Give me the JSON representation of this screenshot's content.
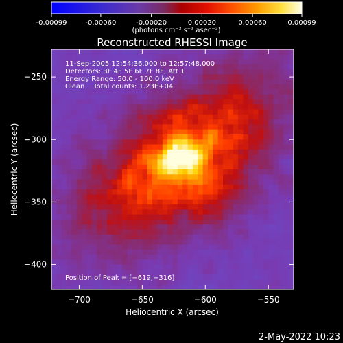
{
  "colorbar": {
    "tick_labels": [
      "-0.00099",
      "-0.00060",
      "-0.00020",
      "0.00020",
      "0.00060",
      "0.00099"
    ],
    "tick_values": [
      -0.00099,
      -0.0006,
      -0.0002,
      0.0002,
      0.0006,
      0.00099
    ],
    "range": [
      -0.00099,
      0.00099
    ],
    "unit_label": "(photons cm⁻² s⁻¹ asec⁻²)"
  },
  "chart_data": {
    "type": "heatmap",
    "title": "Reconstructed RHESSI Image",
    "xlabel": "Heliocentric X (arcsec)",
    "ylabel": "Heliocentric Y (arcsec)",
    "xlim": [
      -722,
      -530
    ],
    "ylim": [
      -420,
      -228
    ],
    "x_ticks": [
      -700,
      -650,
      -600,
      -550
    ],
    "y_ticks": [
      -250,
      -300,
      -350,
      -400
    ],
    "x_tick_labels": [
      "−700",
      "−650",
      "−600",
      "−550"
    ],
    "y_tick_labels": [
      "−250",
      "−300",
      "−350",
      "−400"
    ],
    "peak": [
      -619,
      -316
    ],
    "annotations": [
      "11-Sep-2005 12:54:36.000 to 12:57:48.000",
      "Detectors: 3F 4F 5F 6F 7F 8F, Att 1",
      "Energy Range: 50.0 - 100.0 keV",
      "Clean    Total counts: 1.23E+04",
      "Position of Peak = [−619,−316]"
    ],
    "colormap": [
      "#1a1aff",
      "#6a4ac8",
      "#7a3ab0",
      "#8a2a6a",
      "#c01010",
      "#ff3a00",
      "#ff8c00",
      "#ffd000",
      "#ffffe0"
    ]
  },
  "footer": {
    "date": "2-May-2022 10:23"
  }
}
